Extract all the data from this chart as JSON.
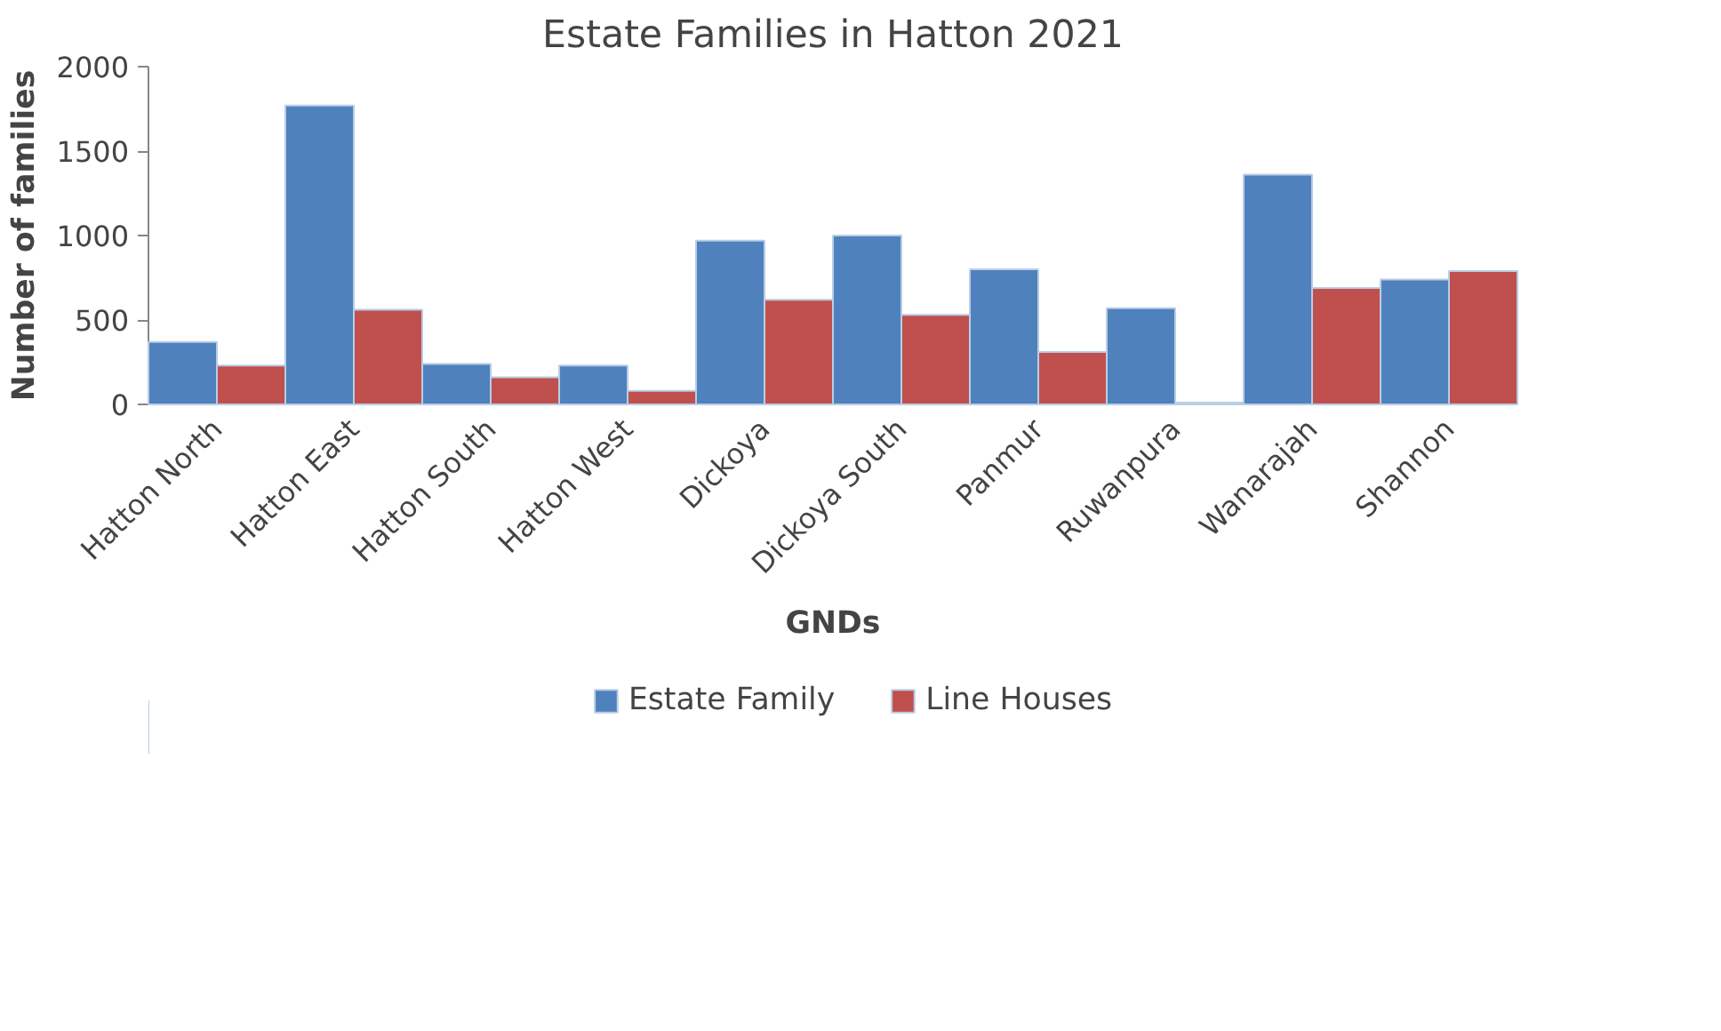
{
  "chart_data": {
    "type": "bar",
    "title": "Estate Families in Hatton 2021",
    "xlabel": "GNDs",
    "ylabel": "Number of families",
    "categories": [
      "Hatton North",
      "Hatton East",
      "Hatton South",
      "Hatton West",
      "Dickoya",
      "Dickoya South",
      "Panmur",
      "Ruwanpura",
      "Wanarajah",
      "Shannon"
    ],
    "series": [
      {
        "name": "Estate Family",
        "color": "#4f81bd",
        "values": [
          370,
          1770,
          240,
          230,
          970,
          1000,
          800,
          570,
          1360,
          740
        ]
      },
      {
        "name": "Line Houses",
        "color": "#c0504d",
        "values": [
          230,
          560,
          160,
          80,
          620,
          530,
          310,
          10,
          690,
          790
        ]
      }
    ],
    "ylim": [
      0,
      2000
    ],
    "yticks": [
      0,
      500,
      1000,
      1500,
      2000
    ],
    "grid": false,
    "legend": "bottom"
  }
}
